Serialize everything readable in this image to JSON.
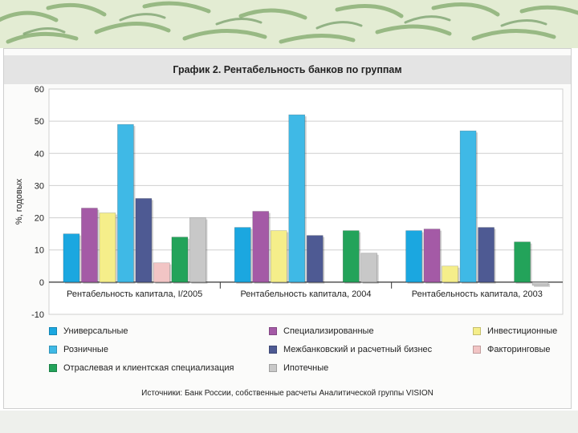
{
  "chart_data": {
    "type": "bar",
    "title": "График 2. Рентабельность банков по группам",
    "ylabel": "%, годовых",
    "xlabel": "",
    "ylim": [
      -10,
      60
    ],
    "yticks": [
      60,
      50,
      40,
      30,
      20,
      10,
      0,
      -10
    ],
    "grid": true,
    "legend_position": "bottom",
    "categories": [
      "Рентабельность капитала, I/2005",
      "Рентабельность капитала, 2004",
      "Рентабельность капитала, 2003"
    ],
    "series": [
      {
        "name": "Универсальные",
        "color": "#1ba7e0",
        "values": [
          15,
          17,
          16
        ]
      },
      {
        "name": "Специализированные",
        "color": "#a45aa6",
        "values": [
          23,
          22,
          16.5
        ]
      },
      {
        "name": "Инвестиционные",
        "color": "#f5ee8a",
        "values": [
          21.5,
          16,
          5
        ]
      },
      {
        "name": "Розничные",
        "color": "#3fb9e6",
        "values": [
          49,
          52,
          47
        ]
      },
      {
        "name": "Межбанковский и расчетный бизнес",
        "color": "#4e5a93",
        "values": [
          26,
          14.5,
          17
        ]
      },
      {
        "name": "Факторинговые",
        "color": "#f2c5c5",
        "values": [
          6,
          null,
          null
        ]
      },
      {
        "name": "Отраслевая и клиентская специализация",
        "color": "#23a35a",
        "values": [
          14,
          16,
          12.5
        ]
      },
      {
        "name": "Ипотечные",
        "color": "#c8c8c8",
        "values": [
          20,
          9,
          -1
        ]
      }
    ],
    "source": "Источники: Банк России, собственные расчеты Аналитической группы VISION"
  }
}
